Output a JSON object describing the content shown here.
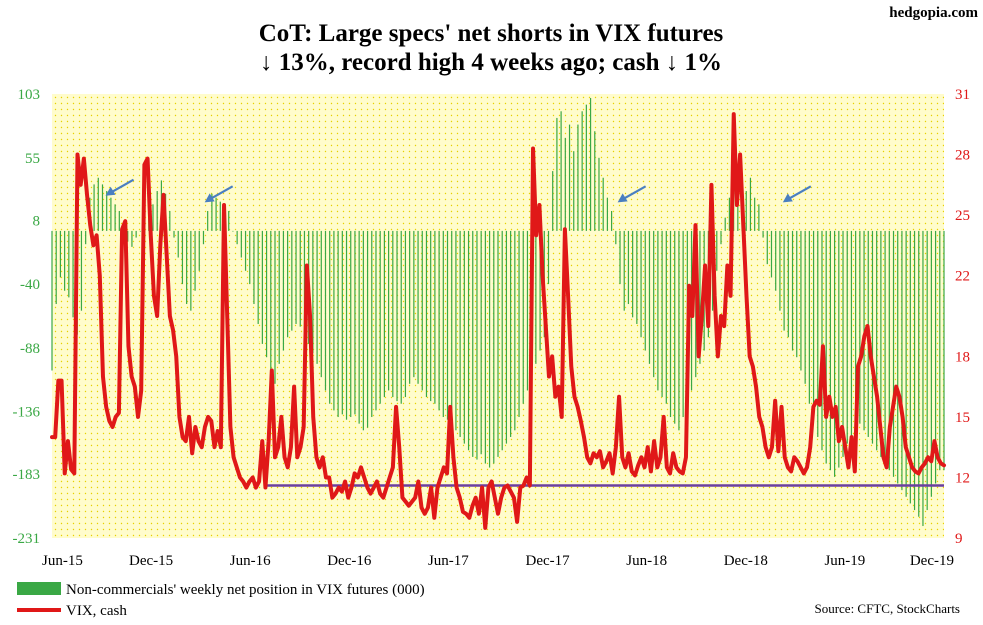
{
  "brand": "hedgopia.com",
  "chart_data": {
    "type": "bar+line",
    "title_line1": "CoT: Large specs' net shorts in VIX futures",
    "title_line2": "↓ 13%, record high 4 weeks ago; cash ↓ 1%",
    "source": "Source: CFTC, StockCharts",
    "x_ticks": [
      "Jun-15",
      "Dec-15",
      "Jun-16",
      "Dec-16",
      "Jun-17",
      "Dec-17",
      "Jun-18",
      "Dec-18",
      "Jun-19",
      "Dec-19"
    ],
    "y_left_ticks": [
      103,
      55,
      8,
      -40,
      -88,
      -136,
      -183,
      -231
    ],
    "y_left_range": [
      -231,
      103
    ],
    "y_right_ticks": [
      31,
      28,
      25,
      22,
      18,
      15,
      12,
      9
    ],
    "y_right_range": [
      9,
      31
    ],
    "legend_position": "bottom-left",
    "grid": "dotted, yellow background",
    "colors": {
      "bars": "#3aa845",
      "line": "#e01818",
      "support": "#6b3fa0",
      "arrows": "#4a7fc1",
      "background": "#fffccc"
    },
    "series": [
      {
        "name": "Non-commercials' weekly net position in VIX futures (000)",
        "type": "bar",
        "unit": "thousand contracts",
        "start": "Jun-15",
        "step": "weekly",
        "values": [
          -105,
          -55,
          -35,
          -45,
          -50,
          -65,
          -78,
          -60,
          -10,
          25,
          35,
          40,
          35,
          30,
          25,
          20,
          15,
          5,
          -8,
          -12,
          -5,
          0,
          -5,
          10,
          20,
          30,
          38,
          28,
          15,
          -5,
          -20,
          -40,
          -55,
          -60,
          -45,
          -30,
          -10,
          15,
          28,
          25,
          22,
          20,
          15,
          0,
          -10,
          -20,
          -30,
          -40,
          -55,
          -70,
          -85,
          -95,
          -105,
          -115,
          -100,
          -90,
          -80,
          -75,
          -70,
          -72,
          -78,
          -85,
          -92,
          -100,
          -110,
          -120,
          -130,
          -135,
          -140,
          -138,
          -142,
          -140,
          -138,
          -145,
          -150,
          -148,
          -140,
          -135,
          -130,
          -125,
          -120,
          -125,
          -128,
          -130,
          -125,
          -115,
          -110,
          -115,
          -120,
          -125,
          -128,
          -130,
          -135,
          -140,
          -142,
          -145,
          -150,
          -155,
          -160,
          -165,
          -170,
          -172,
          -168,
          -175,
          -178,
          -175,
          -170,
          -165,
          -160,
          -155,
          -150,
          -140,
          -130,
          -120,
          -110,
          -100,
          -90,
          -80,
          -40,
          45,
          85,
          90,
          70,
          80,
          60,
          80,
          90,
          95,
          100,
          75,
          55,
          40,
          25,
          15,
          -10,
          -40,
          -60,
          -55,
          -65,
          -70,
          -80,
          -90,
          -100,
          -110,
          -120,
          -125,
          -130,
          -140,
          -145,
          -150,
          -140,
          -130,
          -120,
          -110,
          -100,
          -90,
          -80,
          -60,
          -30,
          -10,
          10,
          25,
          35,
          20,
          15,
          30,
          40,
          25,
          20,
          -5,
          -25,
          -35,
          -45,
          -60,
          -75,
          -80,
          -90,
          -95,
          -105,
          -115,
          -130,
          -140,
          -155,
          -165,
          -175,
          -180,
          -185,
          -178,
          -170,
          -160,
          -155,
          -150,
          -145,
          -150,
          -155,
          -160,
          -165,
          -170,
          -175,
          -180,
          -185,
          -190,
          -195,
          -200,
          -205,
          -210,
          -215,
          -222,
          -210,
          -200,
          -190,
          -180,
          -180
        ]
      },
      {
        "name": "VIX, cash",
        "type": "line",
        "unit": "index level",
        "start": "Jun-15",
        "step": "weekly",
        "values": [
          14.0,
          14.0,
          16.8,
          16.8,
          12.2,
          13.8,
          12.4,
          12.2,
          28.0,
          26.5,
          27.8,
          26.0,
          24.5,
          23.5,
          24.0,
          22.0,
          17.0,
          15.5,
          14.8,
          14.5,
          15.0,
          15.2,
          24.3,
          24.7,
          18.5,
          17.0,
          16.5,
          15.0,
          16.3,
          27.5,
          27.8,
          24.0,
          21.0,
          20.0,
          23.5,
          26.0,
          23.0,
          20.0,
          19.3,
          18.0,
          15.0,
          14.0,
          13.8,
          15.0,
          13.2,
          14.5,
          13.8,
          13.5,
          14.5,
          15.0,
          14.8,
          13.5,
          14.3,
          13.5,
          25.5,
          20.0,
          14.5,
          13.0,
          12.5,
          12.0,
          11.8,
          11.5,
          11.8,
          12.0,
          11.5,
          11.8,
          13.8,
          11.5,
          13.8,
          17.3,
          13.0,
          13.5,
          15.0,
          13.0,
          12.5,
          13.5,
          16.5,
          13.0,
          13.5,
          14.5,
          22.5,
          20.0,
          15.0,
          13.0,
          12.5,
          13.0,
          12.0,
          12.0,
          11.0,
          11.2,
          11.5,
          11.3,
          11.8,
          11.0,
          11.5,
          12.2,
          12.0,
          12.5,
          12.0,
          11.5,
          11.2,
          11.5,
          11.8,
          11.2,
          11.0,
          11.5,
          12.0,
          12.5,
          15.5,
          13.5,
          11.0,
          10.8,
          10.6,
          10.8,
          11.0,
          11.8,
          10.5,
          10.2,
          10.5,
          11.5,
          10.0,
          11.5,
          12.0,
          12.5,
          12.2,
          15.5,
          13.0,
          11.5,
          11.0,
          10.3,
          10.2,
          10.0,
          10.6,
          11.0,
          10.2,
          11.5,
          9.5,
          11.5,
          11.8,
          11.0,
          10.2,
          11.0,
          11.5,
          11.6,
          11.3,
          11.0,
          9.8,
          11.5,
          11.6,
          12.0,
          11.6,
          28.3,
          24.0,
          25.5,
          22.0,
          19.5,
          17.0,
          18.0,
          16.0,
          16.5,
          15.0,
          24.3,
          21.0,
          17.5,
          16.0,
          15.5,
          14.8,
          14.0,
          13.0,
          12.7,
          13.2,
          13.0,
          13.3,
          12.5,
          12.8,
          13.2,
          12.2,
          13.5,
          16.0,
          13.0,
          12.5,
          13.2,
          12.3,
          12.1,
          12.6,
          13.0,
          12.5,
          13.5,
          12.3,
          13.8,
          12.5,
          13.0,
          15.0,
          12.5,
          12.2,
          13.2,
          12.5,
          12.3,
          12.2,
          13.0,
          21.5,
          20.0,
          24.5,
          18.0,
          20.0,
          22.5,
          19.5,
          26.5,
          21.0,
          18.0,
          20.0,
          19.5,
          22.5,
          21.0,
          30.0,
          25.5,
          28.0,
          24.5,
          21.0,
          18.0,
          17.5,
          16.5,
          15.0,
          14.5,
          13.5,
          13.0,
          13.5,
          15.8,
          13.3,
          15.5,
          13.0,
          12.5,
          12.3,
          13.0,
          12.8,
          12.5,
          12.2,
          12.5,
          13.5,
          15.5,
          15.8,
          15.6,
          18.5,
          15.0,
          16.0,
          15.0,
          15.5,
          13.8,
          14.5,
          13.5,
          12.5,
          14.0,
          12.3,
          17.5,
          18.0,
          19.0,
          19.5,
          18.0,
          17.0,
          16.0,
          14.5,
          13.0,
          12.5,
          14.5,
          15.5,
          16.5,
          16.0,
          15.0,
          13.5,
          13.0,
          12.5,
          12.3,
          12.2,
          12.5,
          12.7,
          13.0,
          12.8,
          13.8,
          13.0,
          12.7,
          12.6
        ]
      }
    ],
    "support_line": {
      "value": 11.6,
      "axis": "right",
      "from": "Jul-16",
      "to": "Dec-19"
    },
    "arrows": [
      {
        "at": "Sep-15",
        "axis": "left",
        "value": 25
      },
      {
        "at": "Mar-16",
        "axis": "left",
        "value": 20
      },
      {
        "at": "Apr-18",
        "axis": "left",
        "value": 20
      },
      {
        "at": "Feb-19",
        "axis": "left",
        "value": 20
      }
    ]
  }
}
